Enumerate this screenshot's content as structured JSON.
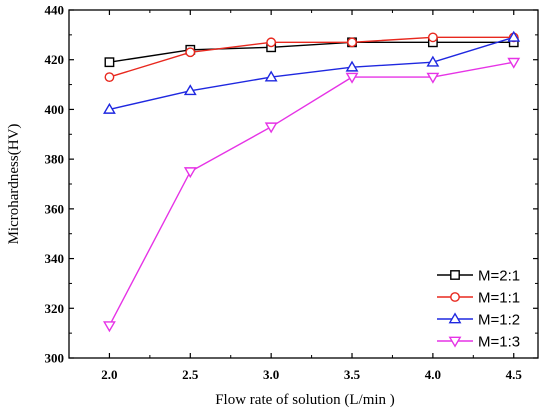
{
  "chart_data": {
    "type": "line",
    "xlabel": "Flow rate of solution (L/min )",
    "ylabel": "Microhardness(HV)",
    "x": [
      2.0,
      2.5,
      3.0,
      3.5,
      4.0,
      4.5
    ],
    "x_tick_labels": [
      "2.0",
      "2.5",
      "3.0",
      "3.5",
      "4.0",
      "4.5"
    ],
    "y_ticks": [
      300,
      320,
      340,
      360,
      380,
      400,
      420,
      440
    ],
    "xlim": [
      1.75,
      4.65
    ],
    "ylim": [
      300,
      440
    ],
    "grid": false,
    "legend_position": "bottom-right",
    "series": [
      {
        "name": "M=2:1",
        "color": "#000000",
        "marker": "square",
        "values": [
          419,
          424,
          425,
          427,
          427,
          427
        ]
      },
      {
        "name": "M=1:1",
        "color": "#e8281e",
        "marker": "circle",
        "values": [
          413,
          423,
          427,
          427,
          429,
          429
        ]
      },
      {
        "name": "M=1:2",
        "color": "#1f28e0",
        "marker": "triangle-up",
        "values": [
          400,
          407.5,
          413,
          417,
          419,
          429
        ]
      },
      {
        "name": "M=1:3",
        "color": "#e633e6",
        "marker": "triangle-down",
        "values": [
          313,
          375,
          393,
          413,
          413,
          419
        ]
      }
    ]
  }
}
